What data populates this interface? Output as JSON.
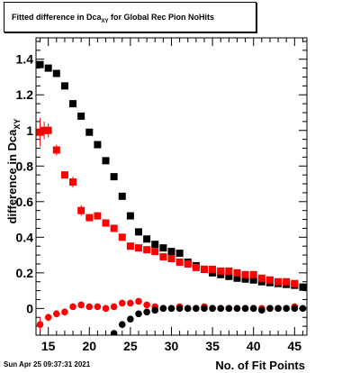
{
  "title": {
    "prefix": "Fitted difference in Dca",
    "sub": "XY",
    "suffix": " for Global Rec Pion NoHits"
  },
  "footer": {
    "timestamp": "Sun Apr 25 09:37:31 2021"
  },
  "chart_data": {
    "type": "scatter",
    "title": "Fitted difference in Dca_XY for Global Rec Pion NoHits",
    "xlabel": "No. of Fit Points",
    "ylabel": "difference in Dca_XY",
    "xlim": [
      13.5,
      46.5
    ],
    "ylim": [
      -0.15,
      1.52
    ],
    "xticks": [
      15,
      20,
      25,
      30,
      35,
      40,
      45
    ],
    "yticks": [
      0,
      0.2,
      0.4,
      0.6,
      0.8,
      1,
      1.2,
      1.4
    ],
    "ytick_labels": [
      "0",
      "0.2",
      "0.4",
      "0.6",
      "0.8",
      "1",
      "1.2",
      "1.4"
    ],
    "grid": false,
    "series": [
      {
        "marker": "square",
        "color": "#000000",
        "x": [
          14,
          15,
          16,
          17,
          18,
          19,
          20,
          21,
          22,
          23,
          24,
          25,
          26,
          27,
          28,
          29,
          30,
          31,
          32,
          33,
          34,
          35,
          36,
          37,
          38,
          39,
          40,
          41,
          42,
          43,
          44,
          45,
          46
        ],
        "y": [
          1.37,
          1.35,
          1.32,
          1.25,
          1.15,
          1.08,
          0.99,
          0.92,
          0.83,
          0.74,
          0.63,
          0.52,
          0.43,
          0.39,
          0.36,
          0.34,
          0.32,
          0.31,
          0.26,
          0.24,
          0.22,
          0.2,
          0.19,
          0.18,
          0.17,
          0.165,
          0.16,
          0.15,
          0.145,
          0.14,
          0.135,
          0.13,
          0.12
        ],
        "yerr": [
          0.01,
          0.01,
          0.01,
          0.01,
          0.01,
          0.01,
          0.01,
          0.01,
          0.01,
          0.01,
          0.01,
          0.01,
          0.01,
          0.01,
          0.01,
          0.01,
          0.01,
          0.01,
          0.01,
          0.01,
          0.01,
          0.01,
          0.01,
          0.01,
          0.01,
          0.01,
          0.01,
          0.01,
          0.01,
          0.01,
          0.01,
          0.01,
          0.01
        ]
      },
      {
        "marker": "square",
        "color": "#ff0000",
        "x": [
          14,
          14.5,
          15,
          16,
          17,
          18,
          19,
          20,
          21,
          22,
          23,
          24,
          25,
          26,
          27,
          28,
          29,
          30,
          31,
          32,
          33,
          34,
          35,
          36,
          37,
          38,
          39,
          40,
          41,
          42,
          43,
          44,
          45
        ],
        "y": [
          0.99,
          1.0,
          1.0,
          0.89,
          0.75,
          0.71,
          0.55,
          0.51,
          0.52,
          0.48,
          0.45,
          0.4,
          0.35,
          0.34,
          0.33,
          0.32,
          0.29,
          0.28,
          0.26,
          0.25,
          0.23,
          0.22,
          0.22,
          0.21,
          0.21,
          0.2,
          0.19,
          0.19,
          0.17,
          0.16,
          0.15,
          0.15,
          0.14
        ],
        "yerr": [
          0.08,
          0.05,
          0.04,
          0.03,
          0.02,
          0.03,
          0.03,
          0.02,
          0.02,
          0.02,
          0.02,
          0.02,
          0.01,
          0.01,
          0.01,
          0.01,
          0.01,
          0.01,
          0.01,
          0.01,
          0.01,
          0.01,
          0.01,
          0.01,
          0.01,
          0.01,
          0.01,
          0.01,
          0.01,
          0.01,
          0.01,
          0.01,
          0.01
        ]
      },
      {
        "marker": "circle",
        "color": "#ff0000",
        "x": [
          14,
          15,
          16,
          17,
          18,
          19,
          20,
          21,
          22,
          23,
          24,
          25,
          26,
          27,
          28,
          29,
          30,
          31,
          32,
          33,
          34,
          35,
          36,
          37,
          38,
          39,
          40,
          41,
          42,
          43,
          44,
          45
        ],
        "y": [
          -0.09,
          -0.05,
          -0.03,
          -0.02,
          0.01,
          0.02,
          0.01,
          0.01,
          0.0,
          0.01,
          0.03,
          0.03,
          0.04,
          0.02,
          0.01,
          0.0,
          0.0,
          0.01,
          0.0,
          0.0,
          0.01,
          0.0,
          0.0,
          0.0,
          0.0,
          0.0,
          0.0,
          0.0,
          0.0,
          0.0,
          0.0,
          0.01
        ],
        "yerr": [
          0.04,
          0.02,
          0.02,
          0.02,
          0.01,
          0.01,
          0.01,
          0.01,
          0.01,
          0.01,
          0.01,
          0.01,
          0.01,
          0.01,
          0.01,
          0.01,
          0.01,
          0.01,
          0.01,
          0.01,
          0.01,
          0.01,
          0.01,
          0.01,
          0.01,
          0.01,
          0.01,
          0.01,
          0.01,
          0.01,
          0.01,
          0.01
        ]
      },
      {
        "marker": "circle",
        "color": "#000000",
        "x": [
          23,
          24,
          25,
          26,
          27,
          28,
          29,
          30,
          31,
          32,
          33,
          34,
          35,
          36,
          37,
          38,
          39,
          40,
          41,
          42,
          43,
          44,
          45,
          46
        ],
        "y": [
          -0.14,
          -0.09,
          -0.06,
          -0.03,
          -0.02,
          -0.01,
          0.0,
          0.0,
          0.0,
          0.0,
          0.0,
          0.0,
          0.0,
          0.0,
          0.0,
          0.0,
          0.0,
          0.0,
          -0.01,
          0.0,
          0.0,
          0.0,
          0.0,
          0.0
        ],
        "yerr": [
          0.01,
          0.01,
          0.01,
          0.01,
          0.01,
          0.01,
          0.01,
          0.01,
          0.01,
          0.01,
          0.01,
          0.01,
          0.01,
          0.01,
          0.01,
          0.01,
          0.01,
          0.01,
          0.01,
          0.01,
          0.01,
          0.01,
          0.01,
          0.01
        ]
      }
    ]
  }
}
